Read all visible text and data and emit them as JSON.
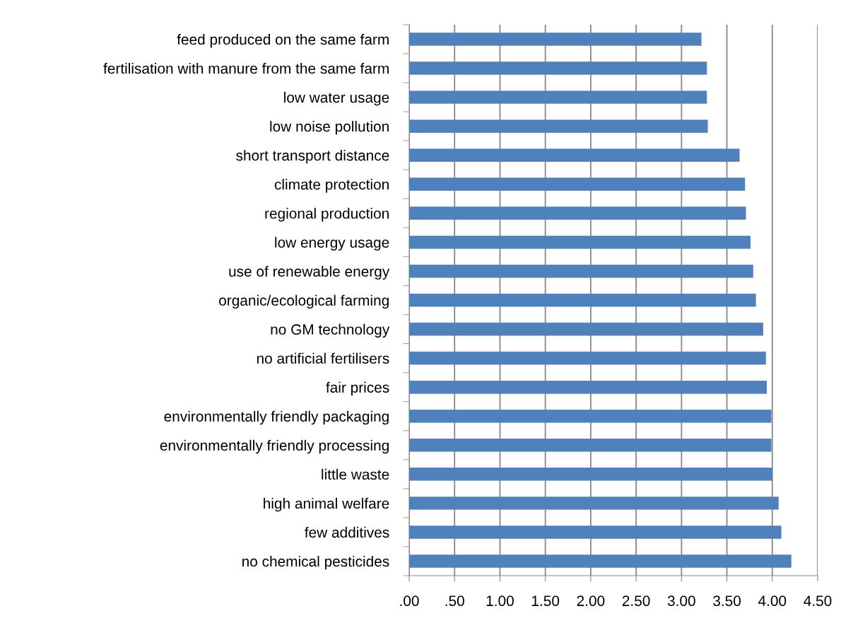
{
  "chart_data": {
    "type": "bar",
    "orientation": "horizontal",
    "categories": [
      "feed produced on the same farm",
      "fertilisation with manure from the same farm",
      "low water usage",
      "low noise pollution",
      "short transport distance",
      "climate protection",
      "regional production",
      "low energy usage",
      "use of renewable energy",
      "organic/ecological farming",
      "no GM technology",
      "no artificial fertilisers",
      "fair prices",
      "environmentally friendly packaging",
      "environmentally friendly processing",
      "little waste",
      "high animal welfare",
      "few additives",
      "no chemical pesticides"
    ],
    "values": [
      3.22,
      3.28,
      3.28,
      3.29,
      3.64,
      3.7,
      3.71,
      3.76,
      3.79,
      3.82,
      3.9,
      3.93,
      3.94,
      3.99,
      3.99,
      4.0,
      4.07,
      4.1,
      4.21
    ],
    "color": "#4f81bd",
    "xlim": [
      0,
      4.5
    ],
    "xticks": [
      {
        "value": 0,
        "label": ".00"
      },
      {
        "value": 0.5,
        "label": ".50"
      },
      {
        "value": 1,
        "label": "1.00"
      },
      {
        "value": 1.5,
        "label": "1.50"
      },
      {
        "value": 2,
        "label": "2.00"
      },
      {
        "value": 2.5,
        "label": "2.50"
      },
      {
        "value": 3,
        "label": "3.00"
      },
      {
        "value": 3.5,
        "label": "3.50"
      },
      {
        "value": 4,
        "label": "4.00"
      },
      {
        "value": 4.5,
        "label": "4.50"
      }
    ],
    "grid": "x",
    "legend": false
  }
}
